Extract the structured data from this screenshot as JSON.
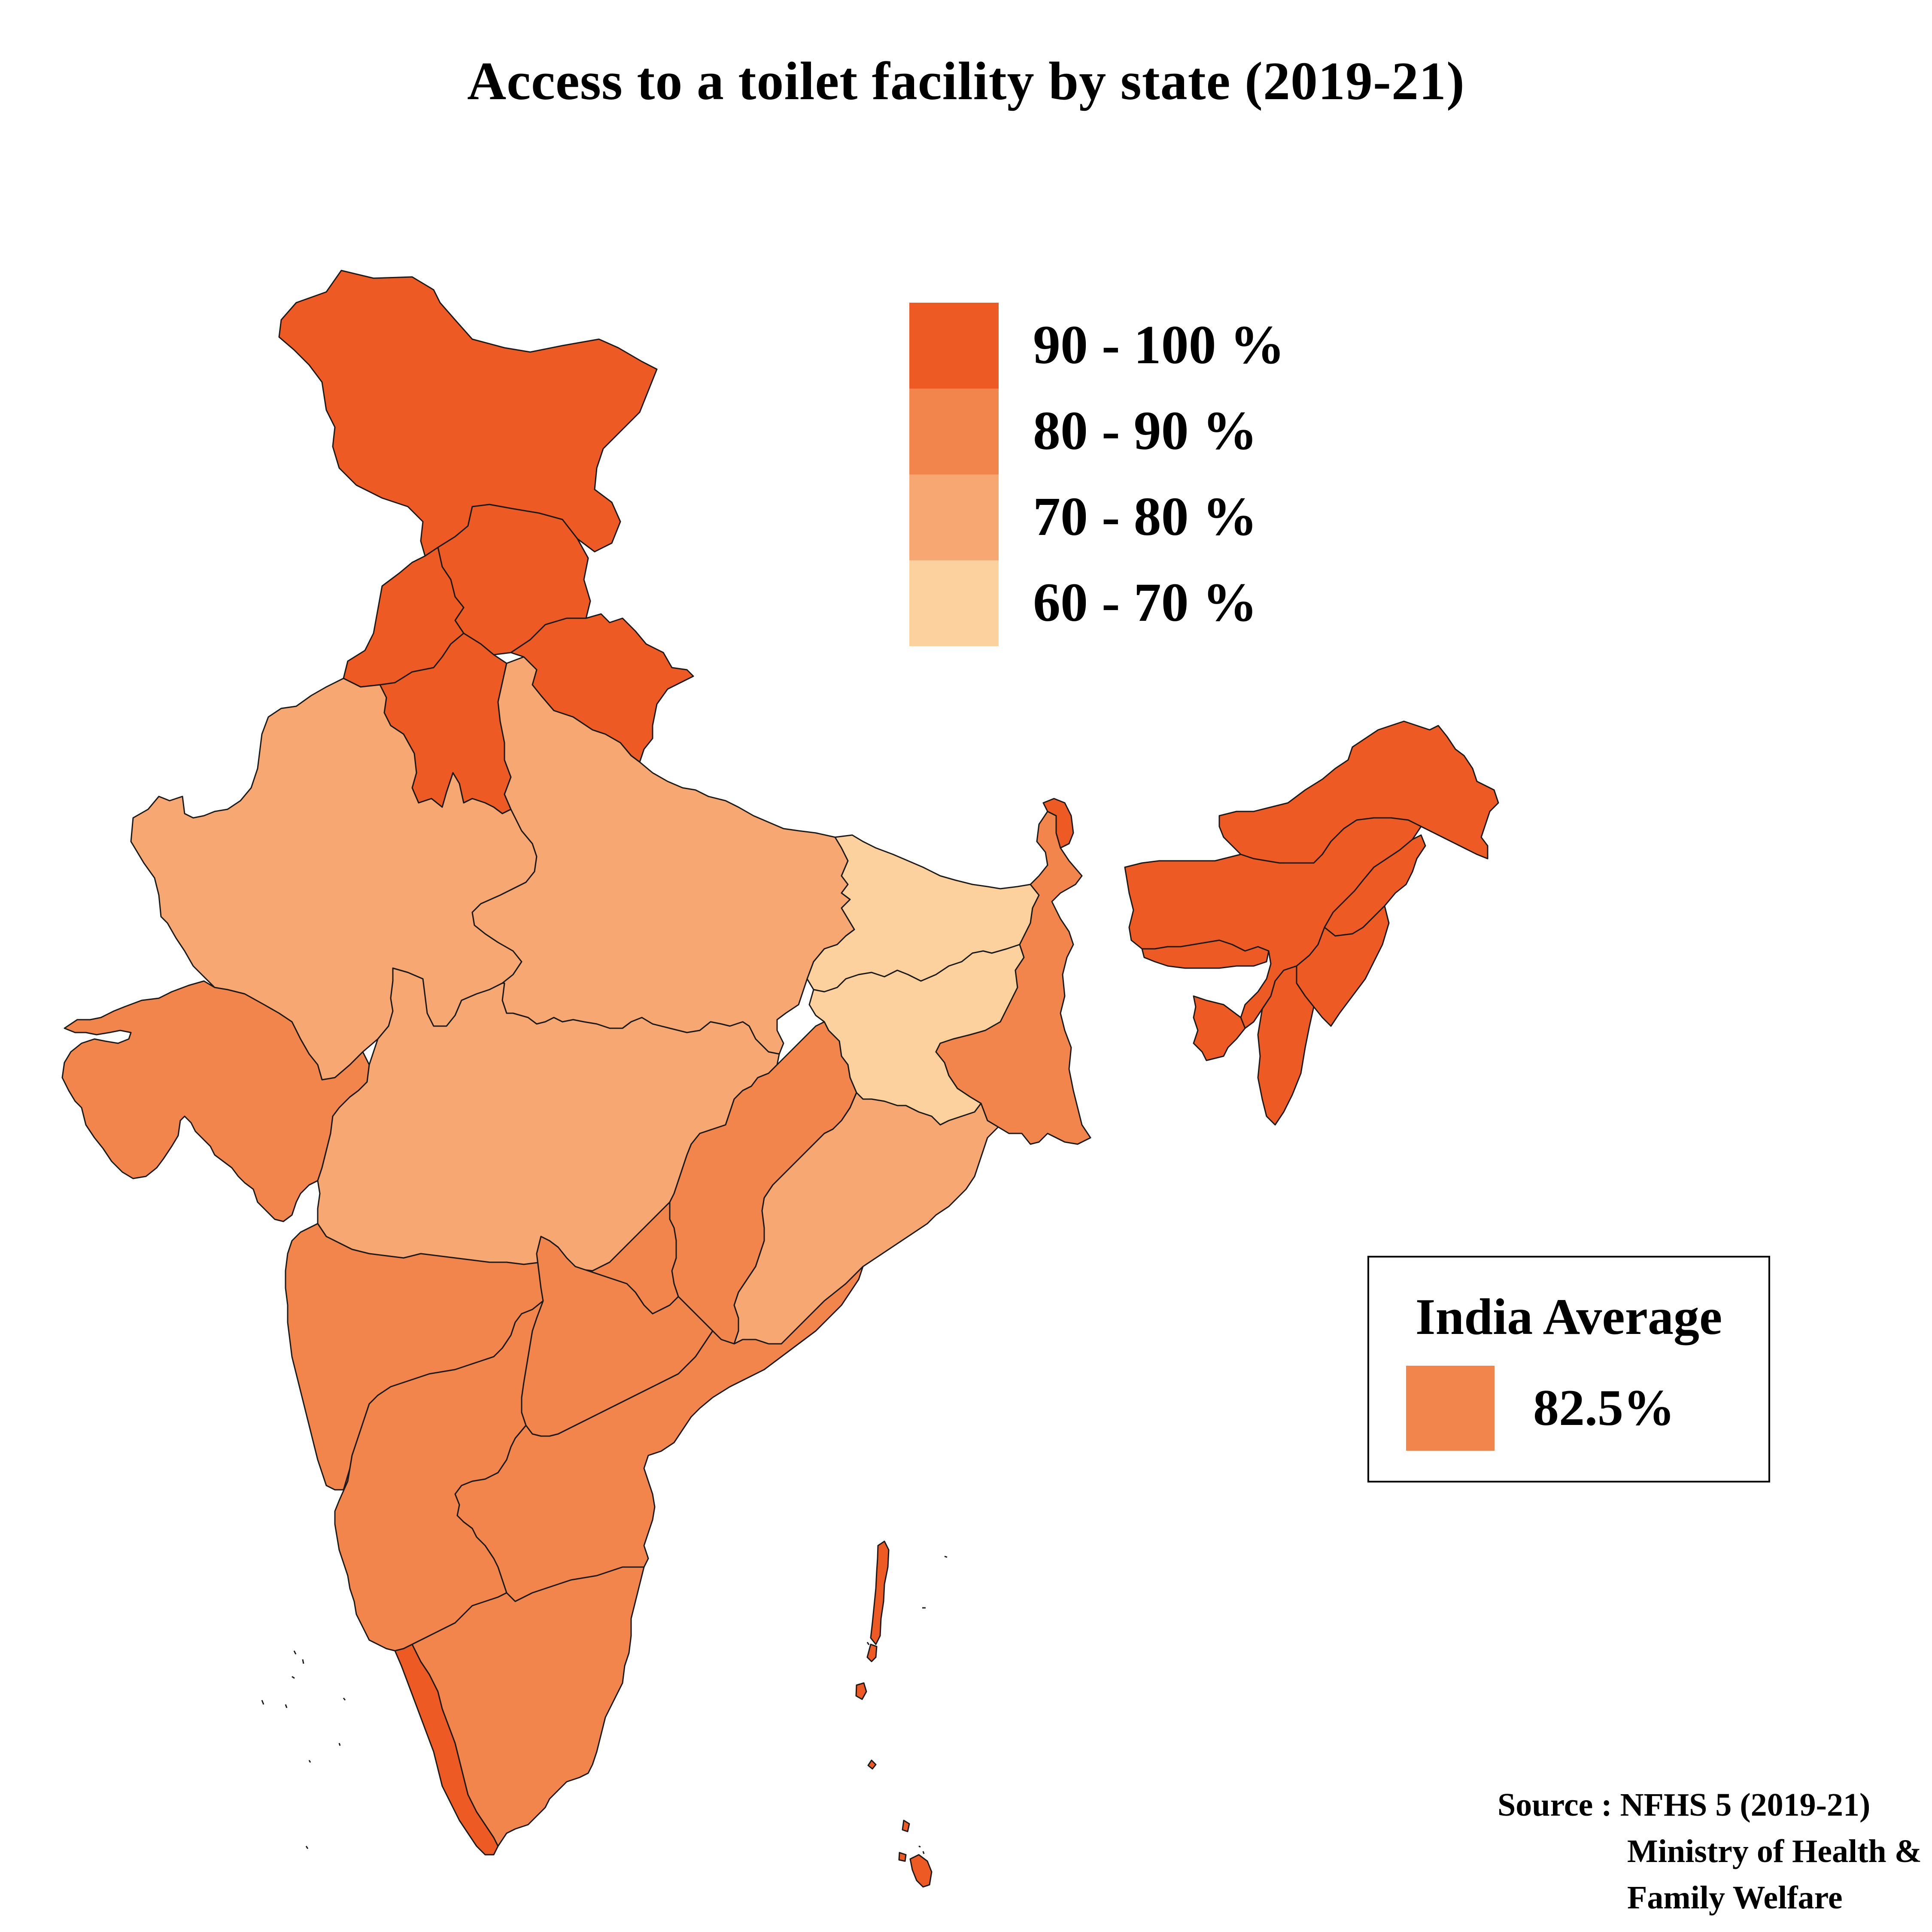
{
  "title": "Access to a toilet facility by state (2019-21)",
  "legend": {
    "items": [
      {
        "label": "90 - 100 %",
        "color": "#ee5a24"
      },
      {
        "label": "80 - 90 %",
        "color": "#f2854b"
      },
      {
        "label": "70 - 80 %",
        "color": "#f6a772"
      },
      {
        "label": "60 - 70 %",
        "color": "#fdd19d"
      }
    ]
  },
  "average_box": {
    "title": "India Average",
    "value": "82.5%",
    "color": "#f2854b"
  },
  "source": {
    "line1": "Source : NFHS 5 (2019-21)",
    "line2": "Ministry of Health &",
    "line3": "Family Welfare"
  },
  "regions": [
    {
      "name": "Jammu and Kashmir / Ladakh",
      "class": "90 - 100 %"
    },
    {
      "name": "Himachal Pradesh",
      "class": "90 - 100 %"
    },
    {
      "name": "Punjab",
      "class": "90 - 100 %"
    },
    {
      "name": "Haryana",
      "class": "90 - 100 %"
    },
    {
      "name": "Uttarakhand",
      "class": "90 - 100 %"
    },
    {
      "name": "Sikkim",
      "class": "90 - 100 %"
    },
    {
      "name": "Arunachal Pradesh",
      "class": "90 - 100 %"
    },
    {
      "name": "Assam",
      "class": "90 - 100 %"
    },
    {
      "name": "Meghalaya",
      "class": "90 - 100 %"
    },
    {
      "name": "Nagaland",
      "class": "90 - 100 %"
    },
    {
      "name": "Manipur",
      "class": "90 - 100 %"
    },
    {
      "name": "Mizoram",
      "class": "90 - 100 %"
    },
    {
      "name": "Tripura",
      "class": "90 - 100 %"
    },
    {
      "name": "Goa",
      "class": "90 - 100 %"
    },
    {
      "name": "Kerala",
      "class": "90 - 100 %"
    },
    {
      "name": "Andaman and Nicobar Islands",
      "class": "90 - 100 %"
    },
    {
      "name": "Gujarat",
      "class": "80 - 90 %"
    },
    {
      "name": "Maharashtra",
      "class": "80 - 90 %"
    },
    {
      "name": "Chhattisgarh",
      "class": "80 - 90 %"
    },
    {
      "name": "West Bengal",
      "class": "80 - 90 %"
    },
    {
      "name": "Telangana",
      "class": "80 - 90 %"
    },
    {
      "name": "Andhra Pradesh",
      "class": "80 - 90 %"
    },
    {
      "name": "Karnataka",
      "class": "80 - 90 %"
    },
    {
      "name": "Tamil Nadu",
      "class": "80 - 90 %"
    },
    {
      "name": "Rajasthan",
      "class": "70 - 80 %"
    },
    {
      "name": "Uttar Pradesh",
      "class": "70 - 80 %"
    },
    {
      "name": "Madhya Pradesh",
      "class": "70 - 80 %"
    },
    {
      "name": "Odisha",
      "class": "70 - 80 %"
    },
    {
      "name": "Bihar",
      "class": "60 - 70 %"
    },
    {
      "name": "Jharkhand",
      "class": "60 - 70 %"
    }
  ]
}
